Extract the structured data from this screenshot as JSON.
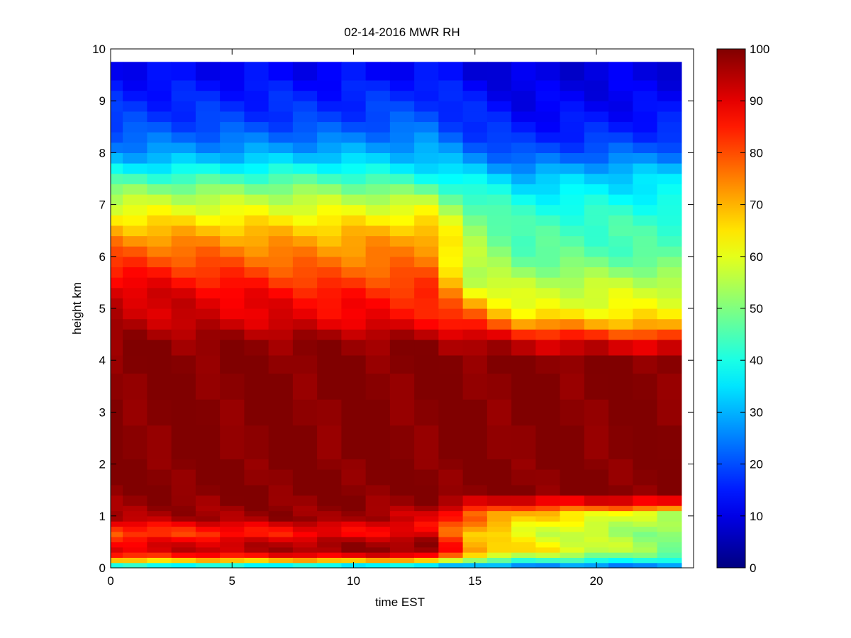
{
  "chart_data": {
    "type": "heatmap",
    "title": "02-14-2016 MWR RH",
    "xlabel": "time EST",
    "ylabel": "height km",
    "xlim": [
      0,
      24
    ],
    "ylim": [
      0,
      10
    ],
    "x_ticks": [
      0,
      5,
      10,
      15,
      20
    ],
    "y_ticks": [
      0,
      1,
      2,
      3,
      4,
      5,
      6,
      7,
      8,
      9,
      10
    ],
    "colorbar": {
      "colormap": "jet",
      "range": [
        0,
        100
      ],
      "ticks": [
        0,
        10,
        20,
        30,
        40,
        50,
        60,
        70,
        80,
        90,
        100
      ]
    },
    "x_centers": [
      0,
      1,
      2,
      3,
      4,
      5,
      6,
      7,
      8,
      9,
      10,
      11,
      12,
      13,
      14,
      15,
      16,
      17,
      18,
      19,
      20,
      21,
      22,
      23
    ],
    "height_levels_km": [
      0.05,
      0.15,
      0.25,
      0.35,
      0.45,
      0.55,
      0.65,
      0.75,
      0.85,
      0.95,
      1.05,
      1.15,
      1.3,
      1.5,
      1.75,
      2.0,
      2.5,
      3.0,
      3.5,
      4.0,
      4.25,
      4.5,
      4.7,
      4.9,
      5.1,
      5.3,
      5.5,
      5.7,
      5.9,
      6.1,
      6.3,
      6.5,
      6.7,
      6.9,
      7.1,
      7.3,
      7.5,
      7.7,
      7.9,
      8.1,
      8.3,
      8.5,
      8.7,
      8.9,
      9.1,
      9.3,
      9.55
    ],
    "height_edges_km": [
      0.0,
      0.1,
      0.2,
      0.3,
      0.4,
      0.5,
      0.6,
      0.7,
      0.8,
      0.9,
      1.0,
      1.1,
      1.2,
      1.4,
      1.6,
      1.9,
      2.1,
      2.75,
      3.25,
      3.75,
      4.1,
      4.4,
      4.6,
      4.8,
      5.0,
      5.2,
      5.4,
      5.6,
      5.8,
      6.0,
      6.2,
      6.4,
      6.6,
      6.8,
      7.0,
      7.2,
      7.4,
      7.6,
      7.8,
      8.0,
      8.2,
      8.4,
      8.6,
      8.8,
      9.0,
      9.2,
      9.4,
      9.75
    ],
    "profile_anchors": {
      "columns": [
        0,
        9,
        13,
        15,
        17,
        23
      ],
      "heights_km": [
        0.05,
        0.2,
        0.35,
        0.5,
        0.65,
        0.8,
        0.95,
        1.05,
        1.2,
        1.5,
        4.0,
        4.4,
        4.6,
        4.8,
        5.0,
        5.2,
        5.4,
        5.6,
        5.8,
        6.0,
        6.2,
        6.4,
        6.6,
        6.8,
        7.0,
        7.2,
        7.4,
        7.6,
        7.8,
        8.0,
        8.2,
        8.4,
        8.7,
        9.0,
        9.3,
        9.6
      ],
      "rh_percent": [
        [
          40,
          80,
          90,
          88,
          80,
          84,
          94,
          96,
          97,
          100,
          100,
          98,
          96,
          94,
          93,
          94,
          91,
          88,
          84,
          80,
          77,
          72,
          68,
          63,
          58,
          54,
          47,
          40,
          33,
          27,
          24,
          21,
          18,
          16,
          14,
          12
        ],
        [
          38,
          86,
          97,
          96,
          88,
          90,
          98,
          98,
          99,
          100,
          100,
          98,
          93,
          89,
          88,
          87,
          83,
          80,
          77,
          75,
          72,
          70,
          66,
          62,
          58,
          54,
          48,
          42,
          36,
          30,
          26,
          22,
          18,
          16,
          14,
          12
        ],
        [
          36,
          86,
          98,
          98,
          90,
          86,
          92,
          92,
          97,
          100,
          100,
          97,
          92,
          87,
          85,
          84,
          82,
          80,
          77,
          75,
          74,
          72,
          67,
          63,
          58,
          52,
          44,
          38,
          33,
          30,
          27,
          24,
          21,
          18,
          16,
          13
        ],
        [
          30,
          60,
          72,
          72,
          68,
          72,
          77,
          77,
          90,
          100,
          100,
          95,
          86,
          80,
          74,
          67,
          60,
          56,
          55,
          55,
          54,
          53,
          52,
          50,
          46,
          42,
          38,
          34,
          28,
          25,
          21,
          18,
          16,
          14,
          12,
          10
        ],
        [
          28,
          52,
          66,
          63,
          60,
          62,
          68,
          70,
          85,
          100,
          100,
          90,
          80,
          68,
          60,
          58,
          57,
          54,
          50,
          48,
          46,
          45,
          44,
          42,
          40,
          37,
          34,
          30,
          24,
          20,
          17,
          15,
          13,
          11,
          10,
          9
        ],
        [
          26,
          44,
          50,
          52,
          50,
          52,
          54,
          56,
          85,
          100,
          100,
          86,
          72,
          66,
          62,
          60,
          58,
          54,
          50,
          46,
          44,
          44,
          44,
          42,
          40,
          37,
          35,
          34,
          28,
          24,
          20,
          17,
          14,
          12,
          11,
          10
        ]
      ]
    }
  }
}
